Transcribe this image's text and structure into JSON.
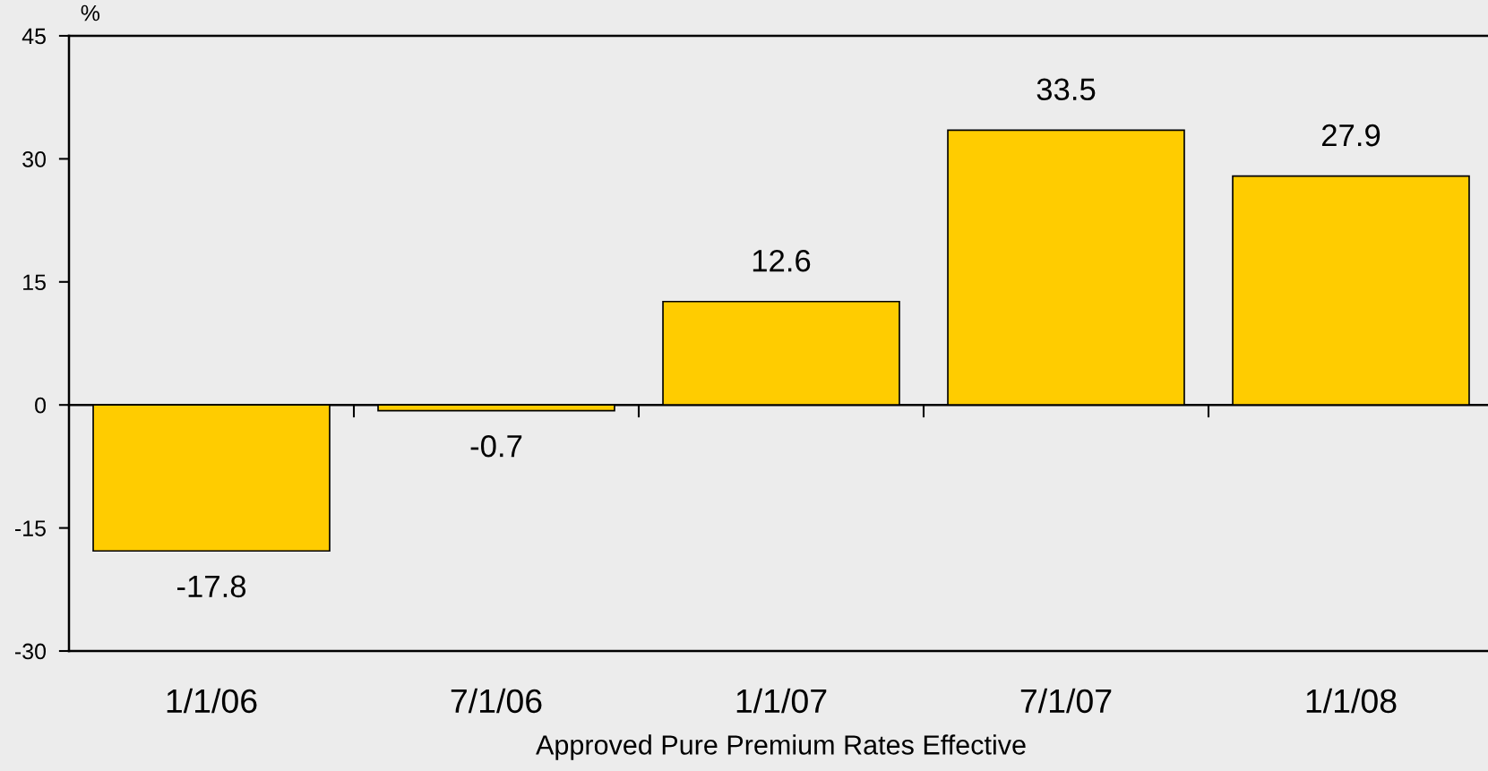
{
  "chart_data": {
    "type": "bar",
    "xlabel": "Approved Pure Premium Rates Effective",
    "ylabel": "%",
    "categories": [
      "1/1/06",
      "7/1/06",
      "1/1/07",
      "7/1/07",
      "1/1/08"
    ],
    "values": [
      -17.8,
      -0.7,
      12.6,
      33.5,
      27.9
    ],
    "color": "#ffcc00",
    "ylim": [
      -30,
      45
    ],
    "yticks": [
      -30,
      -15,
      0,
      15,
      30,
      45
    ],
    "data_labels": true
  }
}
